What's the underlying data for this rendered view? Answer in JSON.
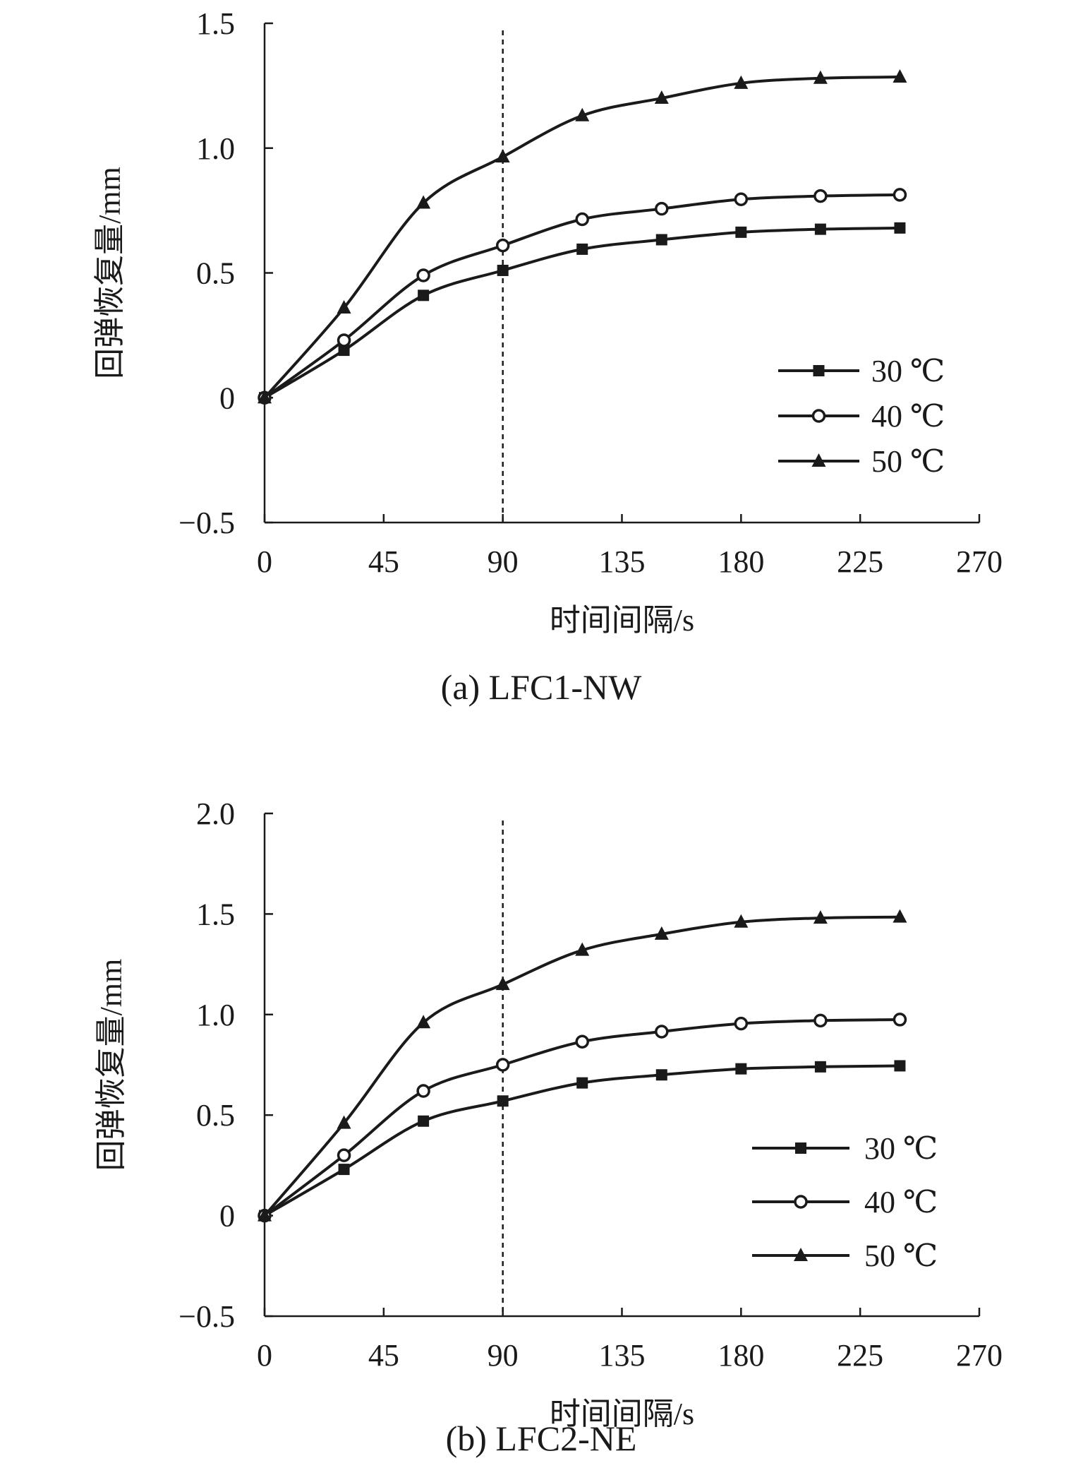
{
  "chart_data": [
    {
      "type": "line",
      "caption": "(a) LFC1-NW",
      "xlabel": "时间间隔/s",
      "ylabel": "回弹恢复量/mm",
      "xlim": [
        0,
        270
      ],
      "ylim": [
        -0.5,
        1.5
      ],
      "x_ticks": [
        0,
        45,
        90,
        135,
        180,
        225,
        270
      ],
      "x_tick_labels": [
        "0",
        "45",
        "90",
        "135",
        "180",
        "225",
        "270"
      ],
      "y_ticks": [
        -0.5,
        0,
        0.5,
        1.0,
        1.5
      ],
      "y_tick_labels": [
        "−0.5",
        "0",
        "0.5",
        "1.0",
        "1.5"
      ],
      "reference_line_x": 90,
      "grid": false,
      "legend_position": "right",
      "x": [
        0,
        30,
        60,
        90,
        120,
        150,
        180,
        210,
        240
      ],
      "series": [
        {
          "name": "30 ℃",
          "marker": "filled-square",
          "values": [
            0,
            0.19,
            0.41,
            0.51,
            0.595,
            0.633,
            0.663,
            0.675,
            0.68
          ]
        },
        {
          "name": "40 ℃",
          "marker": "open-circle",
          "values": [
            0,
            0.23,
            0.49,
            0.61,
            0.715,
            0.757,
            0.795,
            0.808,
            0.813
          ]
        },
        {
          "name": "50 ℃",
          "marker": "filled-triangle",
          "values": [
            0,
            0.36,
            0.78,
            0.965,
            1.13,
            1.2,
            1.26,
            1.28,
            1.285
          ]
        }
      ]
    },
    {
      "type": "line",
      "caption": "(b) LFC2-NE",
      "xlabel": "时间间隔/s",
      "ylabel": "回弹恢复量/mm",
      "xlim": [
        0,
        270
      ],
      "ylim": [
        -0.5,
        2.0
      ],
      "x_ticks": [
        0,
        45,
        90,
        135,
        180,
        225,
        270
      ],
      "x_tick_labels": [
        "0",
        "45",
        "90",
        "135",
        "180",
        "225",
        "270"
      ],
      "y_ticks": [
        -0.5,
        0,
        0.5,
        1.0,
        1.5,
        2.0
      ],
      "y_tick_labels": [
        "−0.5",
        "0",
        "0.5",
        "1.0",
        "1.5",
        "2.0"
      ],
      "reference_line_x": 90,
      "grid": false,
      "legend_position": "right",
      "x": [
        0,
        30,
        60,
        90,
        120,
        150,
        180,
        210,
        240
      ],
      "series": [
        {
          "name": "30 ℃",
          "marker": "filled-square",
          "values": [
            0,
            0.23,
            0.47,
            0.57,
            0.66,
            0.7,
            0.73,
            0.74,
            0.745
          ]
        },
        {
          "name": "40 ℃",
          "marker": "open-circle",
          "values": [
            0,
            0.3,
            0.62,
            0.75,
            0.865,
            0.915,
            0.955,
            0.97,
            0.975
          ]
        },
        {
          "name": "50 ℃",
          "marker": "filled-triangle",
          "values": [
            0,
            0.46,
            0.96,
            1.15,
            1.32,
            1.4,
            1.46,
            1.48,
            1.485
          ]
        }
      ]
    }
  ]
}
